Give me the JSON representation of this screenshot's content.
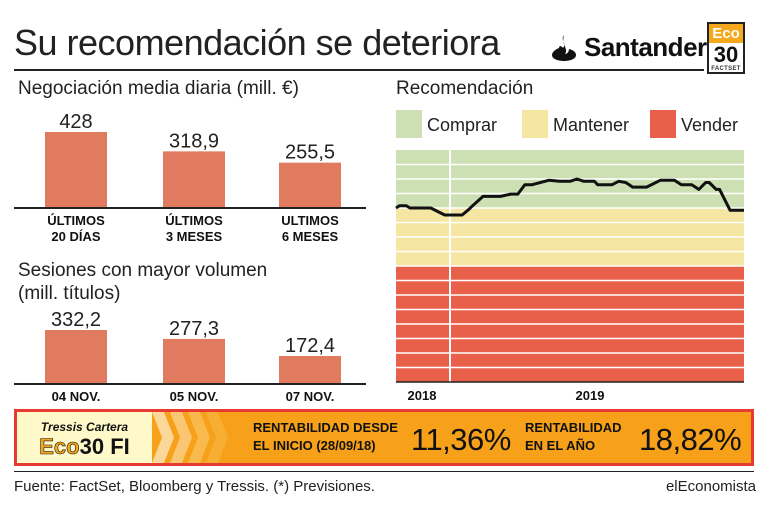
{
  "header": {
    "title": "Su recomendación se deteriora",
    "brand": "Santander",
    "badge": {
      "top": "Eco",
      "number": "30",
      "bottom": "FACTSET"
    }
  },
  "colors": {
    "bar": "#e07b5f",
    "comprar": "#cde0b3",
    "mantener": "#f5e6a3",
    "vender": "#e9604a",
    "banner_orange": "#f7a11a",
    "banner_border": "#e63b2e",
    "eco_orange": "#f5a81b"
  },
  "chart_data": [
    {
      "type": "bar",
      "title": "Negociación media diaria (mill. €)",
      "categories": [
        "ÚLTIMOS 20 DÍAS",
        "ÚLTIMOS 3 MESES",
        "ULTIMOS 6 MESES"
      ],
      "category_lines": [
        [
          "ÚLTIMOS",
          "20 DÍAS"
        ],
        [
          "ÚLTIMOS",
          "3 MESES"
        ],
        [
          "ULTIMOS",
          "6 MESES"
        ]
      ],
      "values": [
        428,
        318.9,
        255.5
      ],
      "value_labels": [
        "428",
        "318,9",
        "255,5"
      ]
    },
    {
      "type": "bar",
      "title": "Sesiones con mayor volumen",
      "title_line2": "(mill. títulos)",
      "categories": [
        "04 NOV.",
        "05 NOV.",
        "07 NOV."
      ],
      "values": [
        332.2,
        277.3,
        172.4
      ],
      "value_labels": [
        "332,2",
        "277,3",
        "172,4"
      ]
    },
    {
      "type": "line",
      "title": "Recomendación",
      "legend": [
        {
          "name": "Comprar",
          "color": "#cde0b3"
        },
        {
          "name": "Mantener",
          "color": "#f5e6a3"
        },
        {
          "name": "Vender",
          "color": "#e9604a"
        }
      ],
      "x_ticks": [
        "2018",
        "2019"
      ],
      "zones": {
        "comprar": [
          1,
          0.5
        ],
        "mantener": [
          0.5,
          0
        ],
        "vender": [
          0,
          -1
        ]
      },
      "ylim": [
        -1,
        1
      ],
      "x": [
        0,
        0.01,
        0.03,
        0.04,
        0.08,
        0.1,
        0.14,
        0.16,
        0.19,
        0.21,
        0.22,
        0.25,
        0.3,
        0.33,
        0.35,
        0.37,
        0.39,
        0.44,
        0.47,
        0.5,
        0.52,
        0.54,
        0.57,
        0.58,
        0.6,
        0.62,
        0.64,
        0.66,
        0.67,
        0.68,
        0.72,
        0.76,
        0.8,
        0.82,
        0.85,
        0.87,
        0.89,
        0.9,
        0.92,
        0.93,
        0.96,
        1
      ],
      "y": [
        0.5,
        0.52,
        0.52,
        0.5,
        0.5,
        0.5,
        0.44,
        0.44,
        0.44,
        0.49,
        0.52,
        0.6,
        0.6,
        0.62,
        0.62,
        0.7,
        0.7,
        0.74,
        0.73,
        0.73,
        0.75,
        0.73,
        0.73,
        0.7,
        0.7,
        0.7,
        0.73,
        0.72,
        0.7,
        0.68,
        0.68,
        0.74,
        0.74,
        0.7,
        0.7,
        0.66,
        0.72,
        0.72,
        0.66,
        0.66,
        0.48,
        0.48
      ]
    }
  ],
  "banner": {
    "label": "Tressis Cartera",
    "fund_eco": "Eco",
    "fund_rest": "30 FI",
    "rent_inicio_lines": [
      "RENTABILIDAD DESDE",
      "EL INICIO (28/09/18)"
    ],
    "rent_inicio_value": "11,36%",
    "rent_ano_lines": [
      "RENTABILIDAD",
      "EN EL AÑO"
    ],
    "rent_ano_value": "18,82%"
  },
  "footer": {
    "source": "Fuente: FactSet, Bloomberg y Tressis. (*) Previsiones.",
    "publisher": "elEconomista"
  }
}
